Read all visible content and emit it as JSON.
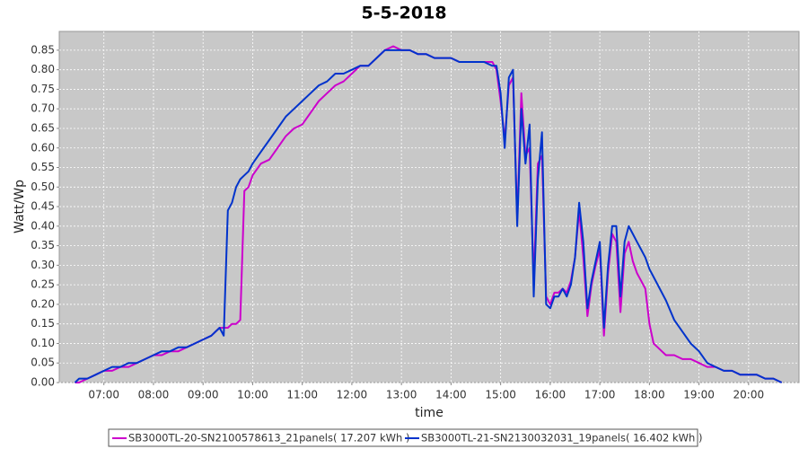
{
  "chart_data": {
    "type": "line",
    "title": "5-5-2018",
    "x_label": "time",
    "y_label": "Watt/Wp",
    "x": [
      "06:25",
      "06:30",
      "06:40",
      "06:50",
      "07:00",
      "07:10",
      "07:20",
      "07:30",
      "07:40",
      "07:50",
      "08:00",
      "08:10",
      "08:20",
      "08:30",
      "08:40",
      "08:50",
      "09:00",
      "09:10",
      "09:15",
      "09:20",
      "09:25",
      "09:30",
      "09:35",
      "09:40",
      "09:45",
      "09:50",
      "09:55",
      "10:00",
      "10:10",
      "10:20",
      "10:30",
      "10:40",
      "10:50",
      "11:00",
      "11:10",
      "11:20",
      "11:30",
      "11:40",
      "11:50",
      "12:00",
      "12:10",
      "12:20",
      "12:30",
      "12:40",
      "12:50",
      "13:00",
      "13:10",
      "13:20",
      "13:30",
      "13:40",
      "13:50",
      "14:00",
      "14:10",
      "14:20",
      "14:30",
      "14:40",
      "14:50",
      "14:55",
      "15:00",
      "15:05",
      "15:10",
      "15:15",
      "15:20",
      "15:25",
      "15:30",
      "15:35",
      "15:40",
      "15:45",
      "15:50",
      "15:55",
      "16:00",
      "16:05",
      "16:10",
      "16:15",
      "16:20",
      "16:25",
      "16:30",
      "16:35",
      "16:40",
      "16:45",
      "16:50",
      "16:55",
      "17:00",
      "17:05",
      "17:10",
      "17:15",
      "17:20",
      "17:25",
      "17:30",
      "17:35",
      "17:40",
      "17:45",
      "17:50",
      "17:55",
      "18:00",
      "18:05",
      "18:10",
      "18:15",
      "18:20",
      "18:30",
      "18:40",
      "18:50",
      "19:00",
      "19:10",
      "19:20",
      "19:30",
      "19:40",
      "19:50",
      "20:00",
      "20:10",
      "20:20",
      "20:30",
      "20:40"
    ],
    "series": [
      {
        "name": "SB3000TL-20-SN2100578613_21panels( 17.207 kWh )",
        "color": "#cc00cc",
        "values": [
          0.0,
          0.0,
          0.01,
          0.02,
          0.03,
          0.03,
          0.04,
          0.04,
          0.05,
          0.06,
          0.07,
          0.07,
          0.08,
          0.08,
          0.09,
          0.1,
          0.11,
          0.12,
          0.13,
          0.14,
          0.14,
          0.14,
          0.15,
          0.15,
          0.16,
          0.49,
          0.5,
          0.53,
          0.56,
          0.57,
          0.6,
          0.63,
          0.65,
          0.66,
          0.69,
          0.72,
          0.74,
          0.76,
          0.77,
          0.79,
          0.81,
          0.81,
          0.83,
          0.85,
          0.86,
          0.85,
          0.85,
          0.84,
          0.84,
          0.83,
          0.83,
          0.83,
          0.82,
          0.82,
          0.82,
          0.82,
          0.82,
          0.8,
          0.72,
          0.62,
          0.76,
          0.78,
          0.42,
          0.74,
          0.58,
          0.6,
          0.26,
          0.56,
          0.58,
          0.22,
          0.2,
          0.23,
          0.23,
          0.24,
          0.23,
          0.26,
          0.32,
          0.44,
          0.32,
          0.17,
          0.25,
          0.3,
          0.34,
          0.12,
          0.28,
          0.38,
          0.36,
          0.18,
          0.33,
          0.36,
          0.31,
          0.28,
          0.26,
          0.24,
          0.15,
          0.1,
          0.09,
          0.08,
          0.07,
          0.07,
          0.06,
          0.06,
          0.05,
          0.04,
          0.04,
          0.03,
          0.03,
          0.02,
          0.02,
          0.02,
          0.01,
          0.01,
          0.0
        ]
      },
      {
        "name": "SB3000TL-21-SN2130032031_19panels( 16.402 kWh )",
        "color": "#0033cc",
        "values": [
          0.0,
          0.01,
          0.01,
          0.02,
          0.03,
          0.04,
          0.04,
          0.05,
          0.05,
          0.06,
          0.07,
          0.08,
          0.08,
          0.09,
          0.09,
          0.1,
          0.11,
          0.12,
          0.13,
          0.14,
          0.12,
          0.44,
          0.46,
          0.5,
          0.52,
          0.53,
          0.54,
          0.56,
          0.59,
          0.62,
          0.65,
          0.68,
          0.7,
          0.72,
          0.74,
          0.76,
          0.77,
          0.79,
          0.79,
          0.8,
          0.81,
          0.81,
          0.83,
          0.85,
          0.85,
          0.85,
          0.85,
          0.84,
          0.84,
          0.83,
          0.83,
          0.83,
          0.82,
          0.82,
          0.82,
          0.82,
          0.81,
          0.81,
          0.74,
          0.6,
          0.78,
          0.8,
          0.4,
          0.7,
          0.56,
          0.66,
          0.22,
          0.52,
          0.64,
          0.2,
          0.19,
          0.22,
          0.22,
          0.24,
          0.22,
          0.25,
          0.32,
          0.46,
          0.36,
          0.19,
          0.26,
          0.31,
          0.36,
          0.14,
          0.3,
          0.4,
          0.4,
          0.22,
          0.36,
          0.4,
          0.38,
          0.36,
          0.34,
          0.32,
          0.29,
          0.27,
          0.25,
          0.23,
          0.21,
          0.16,
          0.13,
          0.1,
          0.08,
          0.05,
          0.04,
          0.03,
          0.03,
          0.02,
          0.02,
          0.02,
          0.01,
          0.01,
          0.0
        ]
      }
    ],
    "xlim": [
      "06:06",
      "21:01"
    ],
    "xticks": [
      "07:00",
      "08:00",
      "09:00",
      "10:00",
      "11:00",
      "12:00",
      "13:00",
      "14:00",
      "15:00",
      "16:00",
      "17:00",
      "18:00",
      "19:00",
      "20:00"
    ],
    "ylim": [
      0,
      0.898
    ],
    "yticks": [
      {
        "value": 0,
        "label": "0.00"
      },
      {
        "value": 0.05,
        "label": "0.05"
      },
      {
        "value": 0.1,
        "label": "0.10"
      },
      {
        "value": 0.15,
        "label": "0.15"
      },
      {
        "value": 0.2,
        "label": "0.20"
      },
      {
        "value": 0.25,
        "label": "0.25"
      },
      {
        "value": 0.3,
        "label": "0.30"
      },
      {
        "value": 0.35,
        "label": "0.35"
      },
      {
        "value": 0.4,
        "label": "0.40"
      },
      {
        "value": 0.45,
        "label": "0.45"
      },
      {
        "value": 0.5,
        "label": "0.50"
      },
      {
        "value": 0.55,
        "label": "0.55"
      },
      {
        "value": 0.6,
        "label": "0.60"
      },
      {
        "value": 0.65,
        "label": "0.65"
      },
      {
        "value": 0.7,
        "label": "0.70"
      },
      {
        "value": 0.75,
        "label": "0.75"
      },
      {
        "value": 0.8,
        "label": "0.80"
      },
      {
        "value": 0.85,
        "label": "0.85"
      }
    ],
    "grid": true
  }
}
